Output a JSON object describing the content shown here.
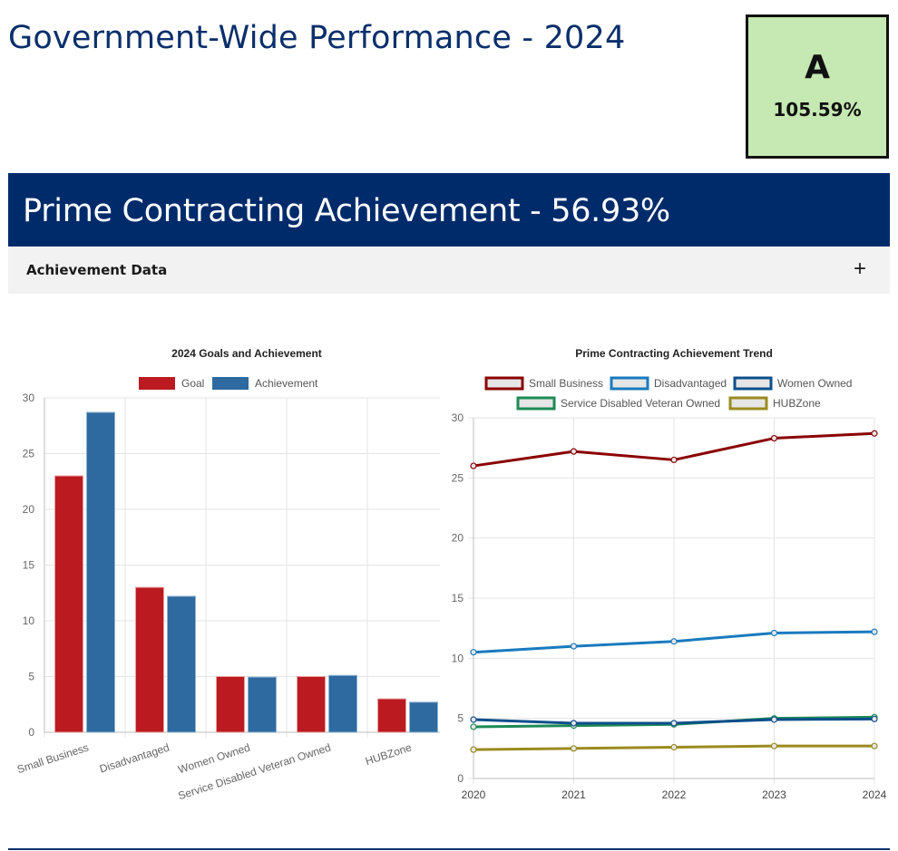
{
  "header": {
    "title": "Government-Wide Performance - 2024",
    "grade": "A",
    "grade_percent": "105.59%",
    "grade_color": "#c6e8b3"
  },
  "banner": {
    "title": "Prime Contracting Achievement - 56.93%",
    "color": "#002b6b"
  },
  "accordion": {
    "label": "Achievement Data",
    "toggle_icon": "plus-icon",
    "toggle_glyph": "+"
  },
  "chart_data": [
    {
      "type": "bar",
      "title": "2024 Goals and Achievement",
      "categories": [
        "Small Business",
        "Disadvantaged",
        "Women Owned",
        "Service Disabled Veteran Owned",
        "HUBZone"
      ],
      "series": [
        {
          "name": "Goal",
          "values": [
            23,
            13,
            5,
            5,
            3
          ],
          "color": "#bb1a21"
        },
        {
          "name": "Achievement",
          "values": [
            28.7,
            12.2,
            4.95,
            5.1,
            2.7
          ],
          "color": "#2e6a9f"
        }
      ],
      "ylim": [
        0,
        30
      ],
      "yticks": [
        0,
        5,
        10,
        15,
        20,
        25,
        30
      ],
      "legend": "top",
      "grid": true
    },
    {
      "type": "line",
      "title": "Prime Contracting Achievement Trend",
      "x": [
        2020,
        2021,
        2022,
        2023,
        2024
      ],
      "series": [
        {
          "name": "Small Business",
          "values": [
            26.0,
            27.2,
            26.5,
            28.3,
            28.7
          ],
          "color": "#8b0000"
        },
        {
          "name": "Disadvantaged",
          "values": [
            10.5,
            11.0,
            11.4,
            12.1,
            12.2
          ],
          "color": "#1a7abf"
        },
        {
          "name": "Women Owned",
          "values": [
            4.9,
            4.6,
            4.6,
            4.9,
            4.95
          ],
          "color": "#0d4f8b"
        },
        {
          "name": "Service Disabled Veteran Owned",
          "values": [
            4.3,
            4.4,
            4.5,
            5.0,
            5.1
          ],
          "color": "#1d8a55"
        },
        {
          "name": "HUBZone",
          "values": [
            2.4,
            2.5,
            2.6,
            2.7,
            2.7
          ],
          "color": "#9b8b1f"
        }
      ],
      "ylim": [
        0,
        30
      ],
      "yticks": [
        0,
        5,
        10,
        15,
        20,
        25,
        30
      ],
      "legend": "top",
      "grid": true
    }
  ]
}
